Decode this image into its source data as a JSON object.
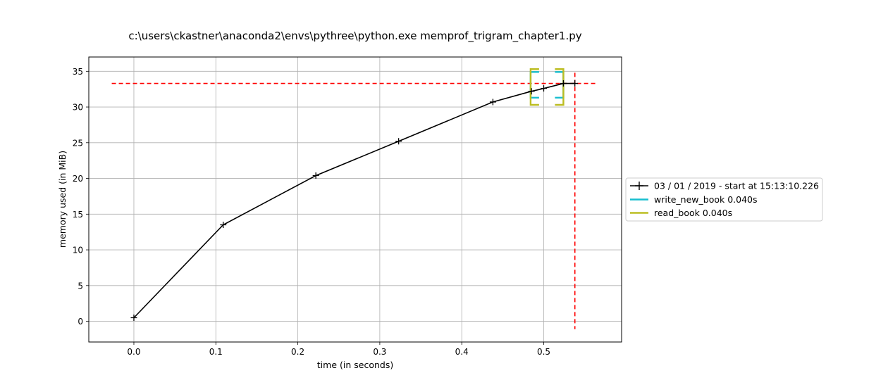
{
  "chart_data": {
    "type": "line",
    "title": "c:\\users\\ckastner\\anaconda2\\envs\\pythree\\python.exe memprof_trigram_chapter1.py",
    "xlabel": "time (in seconds)",
    "ylabel": "memory used (in MiB)",
    "xlim": [
      -0.055,
      0.595
    ],
    "ylim": [
      -2.9,
      37.0
    ],
    "xticks": [
      0.0,
      0.1,
      0.2,
      0.3,
      0.4,
      0.5
    ],
    "xtick_labels": [
      "0.0",
      "0.1",
      "0.2",
      "0.3",
      "0.4",
      "0.5"
    ],
    "yticks": [
      0,
      5,
      10,
      15,
      20,
      25,
      30,
      35
    ],
    "ytick_labels": [
      "0",
      "5",
      "10",
      "15",
      "20",
      "25",
      "30",
      "35"
    ],
    "grid": true,
    "legend_position": "right, outside plot area",
    "series": [
      {
        "name": "03 / 01 / 2019 - start at 15:13:10.226",
        "color": "#000000",
        "marker": "plus",
        "x": [
          0.0,
          0.109,
          0.222,
          0.323,
          0.438,
          0.485,
          0.5,
          0.524,
          0.538
        ],
        "y": [
          0.5,
          13.5,
          20.4,
          25.2,
          30.7,
          32.2,
          32.6,
          33.3,
          33.3
        ]
      },
      {
        "name": "write_new_book 0.040s",
        "color": "#17becf",
        "type": "function-bracket",
        "start": 0.484,
        "end": 0.524,
        "y_start": 31.3,
        "y_end": 34.9
      },
      {
        "name": "read_book 0.040s",
        "color": "#bcbd22",
        "type": "function-bracket",
        "start": 0.484,
        "end": 0.524,
        "y_start": 30.3,
        "y_end": 35.3
      }
    ],
    "annotations": {
      "max_memory_line_y": 33.3,
      "max_time_line_x": 0.538,
      "line_color": "#ff0000",
      "line_style": "dashed"
    }
  }
}
